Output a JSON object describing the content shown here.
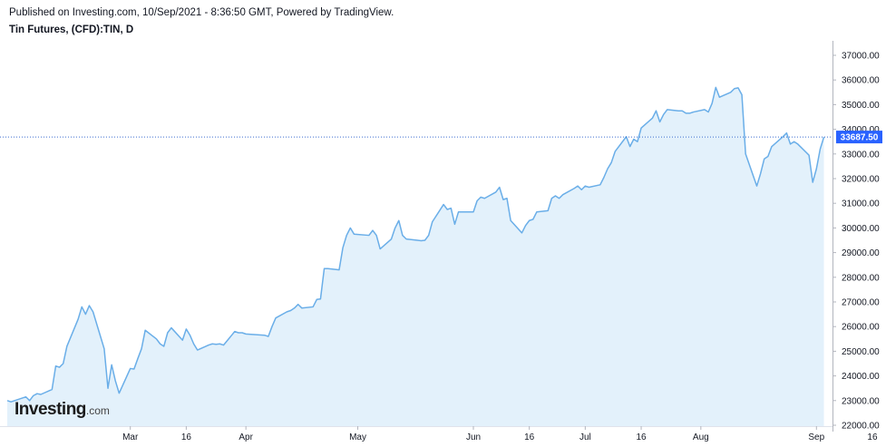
{
  "header": {
    "published": "Published on Investing.com, 10/Sep/2021 - 8:36:50 GMT, Powered by TradingView.",
    "title": "Tin Futures, (CFD):TIN, D"
  },
  "logo": {
    "main": "Investing",
    "suffix": ".com"
  },
  "colors": {
    "line": "#6aaee8",
    "area": "#e3f1fb",
    "price_tag": "#2962ff",
    "price_line": "#3f6fd0",
    "axis": "#b2b5be"
  },
  "chart_data": {
    "type": "area",
    "title": "Tin Futures, (CFD):TIN, D",
    "xlabel": "",
    "ylabel": "",
    "ylim": [
      22000,
      37300
    ],
    "xlim": [
      "2021-01-27",
      "2021-09-18"
    ],
    "grid": false,
    "legend": "none",
    "last_price": 33687.5,
    "last_price_label": "33687.50",
    "y_ticks": [
      22000,
      23000,
      24000,
      25000,
      26000,
      27000,
      28000,
      29000,
      30000,
      31000,
      32000,
      33000,
      34000,
      35000,
      36000,
      37000
    ],
    "y_tick_labels": [
      "22000.00",
      "23000.00",
      "24000.00",
      "25000.00",
      "26000.00",
      "27000.00",
      "28000.00",
      "29000.00",
      "30000.00",
      "31000.00",
      "32000.00",
      "33000.00",
      "34000.00",
      "35000.00",
      "36000.00",
      "37000.00"
    ],
    "x_ticks": [
      {
        "date": "2021-03-01",
        "label": "Mar"
      },
      {
        "date": "2021-03-16",
        "label": "16"
      },
      {
        "date": "2021-04-01",
        "label": "Apr"
      },
      {
        "date": "2021-05-01",
        "label": "May"
      },
      {
        "date": "2021-06-01",
        "label": "Jun"
      },
      {
        "date": "2021-06-16",
        "label": "16"
      },
      {
        "date": "2021-07-01",
        "label": "Jul"
      },
      {
        "date": "2021-07-16",
        "label": "16"
      },
      {
        "date": "2021-08-01",
        "label": "Aug"
      },
      {
        "date": "2021-09-01",
        "label": "Sep"
      },
      {
        "date": "2021-09-16",
        "label": "16"
      }
    ],
    "series": [
      {
        "points": [
          [
            "2021-01-27",
            23000
          ],
          [
            "2021-01-28",
            22950
          ],
          [
            "2021-01-29",
            23000
          ],
          [
            "2021-02-01",
            23150
          ],
          [
            "2021-02-02",
            23000
          ],
          [
            "2021-02-03",
            23200
          ],
          [
            "2021-02-04",
            23280
          ],
          [
            "2021-02-05",
            23250
          ],
          [
            "2021-02-08",
            23450
          ],
          [
            "2021-02-09",
            24400
          ],
          [
            "2021-02-10",
            24350
          ],
          [
            "2021-02-11",
            24500
          ],
          [
            "2021-02-12",
            25200
          ],
          [
            "2021-02-15",
            26300
          ],
          [
            "2021-02-16",
            26800
          ],
          [
            "2021-02-17",
            26500
          ],
          [
            "2021-02-18",
            26850
          ],
          [
            "2021-02-19",
            26600
          ],
          [
            "2021-02-22",
            25100
          ],
          [
            "2021-02-23",
            23500
          ],
          [
            "2021-02-24",
            24450
          ],
          [
            "2021-02-25",
            23800
          ],
          [
            "2021-02-26",
            23300
          ],
          [
            "2021-03-01",
            24300
          ],
          [
            "2021-03-02",
            24280
          ],
          [
            "2021-03-03",
            24700
          ],
          [
            "2021-03-04",
            25100
          ],
          [
            "2021-03-05",
            25850
          ],
          [
            "2021-03-08",
            25500
          ],
          [
            "2021-03-09",
            25300
          ],
          [
            "2021-03-10",
            25200
          ],
          [
            "2021-03-11",
            25750
          ],
          [
            "2021-03-12",
            25950
          ],
          [
            "2021-03-15",
            25450
          ],
          [
            "2021-03-16",
            25900
          ],
          [
            "2021-03-17",
            25650
          ],
          [
            "2021-03-18",
            25300
          ],
          [
            "2021-03-19",
            25050
          ],
          [
            "2021-03-22",
            25250
          ],
          [
            "2021-03-23",
            25300
          ],
          [
            "2021-03-24",
            25280
          ],
          [
            "2021-03-25",
            25300
          ],
          [
            "2021-03-26",
            25250
          ],
          [
            "2021-03-29",
            25800
          ],
          [
            "2021-03-30",
            25750
          ],
          [
            "2021-03-31",
            25750
          ],
          [
            "2021-04-01",
            25700
          ],
          [
            "2021-04-06",
            25650
          ],
          [
            "2021-04-07",
            25600
          ],
          [
            "2021-04-08",
            26000
          ],
          [
            "2021-04-09",
            26350
          ],
          [
            "2021-04-12",
            26600
          ],
          [
            "2021-04-13",
            26650
          ],
          [
            "2021-04-14",
            26750
          ],
          [
            "2021-04-15",
            26900
          ],
          [
            "2021-04-16",
            26750
          ],
          [
            "2021-04-19",
            26800
          ],
          [
            "2021-04-20",
            27100
          ],
          [
            "2021-04-21",
            27120
          ],
          [
            "2021-04-22",
            28350
          ],
          [
            "2021-04-23",
            28350
          ],
          [
            "2021-04-26",
            28300
          ],
          [
            "2021-04-27",
            29200
          ],
          [
            "2021-04-28",
            29700
          ],
          [
            "2021-04-29",
            30000
          ],
          [
            "2021-04-30",
            29750
          ],
          [
            "2021-05-04",
            29700
          ],
          [
            "2021-05-05",
            29900
          ],
          [
            "2021-05-06",
            29700
          ],
          [
            "2021-05-07",
            29150
          ],
          [
            "2021-05-10",
            29550
          ],
          [
            "2021-05-11",
            30000
          ],
          [
            "2021-05-12",
            30300
          ],
          [
            "2021-05-13",
            29700
          ],
          [
            "2021-05-14",
            29550
          ],
          [
            "2021-05-17",
            29500
          ],
          [
            "2021-05-18",
            29480
          ],
          [
            "2021-05-19",
            29500
          ],
          [
            "2021-05-20",
            29700
          ],
          [
            "2021-05-21",
            30250
          ],
          [
            "2021-05-24",
            30950
          ],
          [
            "2021-05-25",
            30750
          ],
          [
            "2021-05-26",
            30800
          ],
          [
            "2021-05-27",
            30150
          ],
          [
            "2021-05-28",
            30650
          ],
          [
            "2021-06-01",
            30650
          ],
          [
            "2021-06-02",
            31100
          ],
          [
            "2021-06-03",
            31250
          ],
          [
            "2021-06-04",
            31200
          ],
          [
            "2021-06-07",
            31450
          ],
          [
            "2021-06-08",
            31650
          ],
          [
            "2021-06-09",
            31150
          ],
          [
            "2021-06-10",
            31200
          ],
          [
            "2021-06-11",
            30300
          ],
          [
            "2021-06-14",
            29800
          ],
          [
            "2021-06-15",
            30100
          ],
          [
            "2021-06-16",
            30300
          ],
          [
            "2021-06-17",
            30350
          ],
          [
            "2021-06-18",
            30650
          ],
          [
            "2021-06-21",
            30700
          ],
          [
            "2021-06-22",
            31200
          ],
          [
            "2021-06-23",
            31300
          ],
          [
            "2021-06-24",
            31200
          ],
          [
            "2021-06-25",
            31350
          ],
          [
            "2021-06-28",
            31600
          ],
          [
            "2021-06-29",
            31700
          ],
          [
            "2021-06-30",
            31550
          ],
          [
            "2021-07-01",
            31700
          ],
          [
            "2021-07-02",
            31650
          ],
          [
            "2021-07-05",
            31750
          ],
          [
            "2021-07-06",
            32050
          ],
          [
            "2021-07-07",
            32400
          ],
          [
            "2021-07-08",
            32650
          ],
          [
            "2021-07-09",
            33100
          ],
          [
            "2021-07-12",
            33700
          ],
          [
            "2021-07-13",
            33300
          ],
          [
            "2021-07-14",
            33600
          ],
          [
            "2021-07-15",
            33500
          ],
          [
            "2021-07-16",
            34050
          ],
          [
            "2021-07-19",
            34450
          ],
          [
            "2021-07-20",
            34750
          ],
          [
            "2021-07-21",
            34300
          ],
          [
            "2021-07-22",
            34600
          ],
          [
            "2021-07-23",
            34800
          ],
          [
            "2021-07-26",
            34750
          ],
          [
            "2021-07-27",
            34750
          ],
          [
            "2021-07-28",
            34650
          ],
          [
            "2021-07-29",
            34650
          ],
          [
            "2021-07-30",
            34700
          ],
          [
            "2021-08-02",
            34800
          ],
          [
            "2021-08-03",
            34700
          ],
          [
            "2021-08-04",
            35050
          ],
          [
            "2021-08-05",
            35700
          ],
          [
            "2021-08-06",
            35300
          ],
          [
            "2021-08-09",
            35500
          ],
          [
            "2021-08-10",
            35650
          ],
          [
            "2021-08-11",
            35680
          ],
          [
            "2021-08-12",
            35400
          ],
          [
            "2021-08-13",
            33000
          ],
          [
            "2021-08-16",
            31700
          ],
          [
            "2021-08-17",
            32200
          ],
          [
            "2021-08-18",
            32800
          ],
          [
            "2021-08-19",
            32900
          ],
          [
            "2021-08-20",
            33300
          ],
          [
            "2021-08-23",
            33700
          ],
          [
            "2021-08-24",
            33850
          ],
          [
            "2021-08-25",
            33400
          ],
          [
            "2021-08-26",
            33500
          ],
          [
            "2021-08-27",
            33400
          ],
          [
            "2021-08-30",
            32950
          ],
          [
            "2021-08-31",
            31850
          ],
          [
            "2021-09-01",
            32400
          ],
          [
            "2021-09-02",
            33200
          ],
          [
            "2021-09-03",
            33687.5
          ]
        ]
      }
    ]
  }
}
